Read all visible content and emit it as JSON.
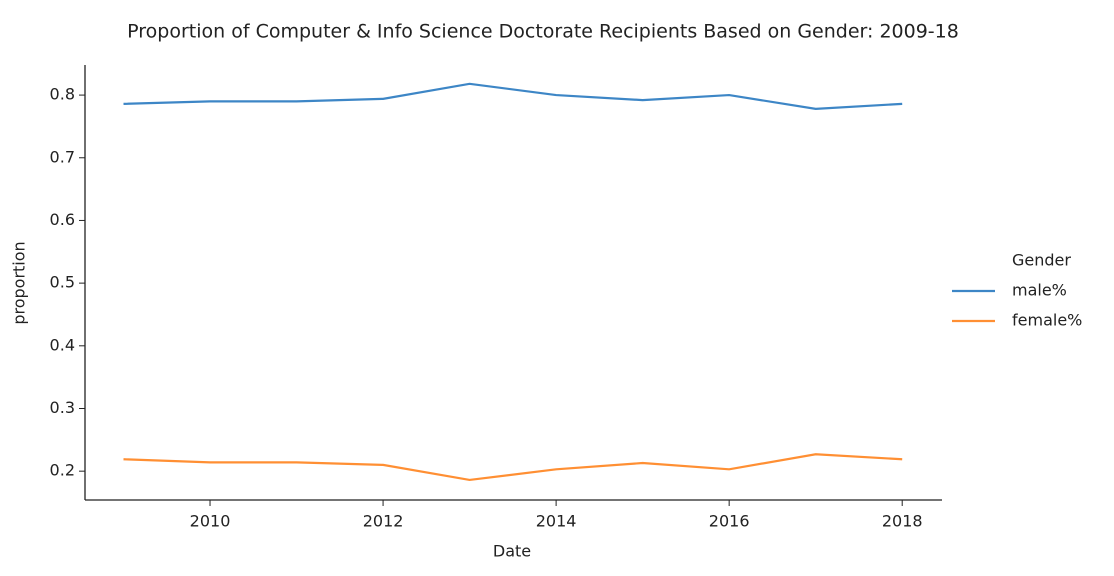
{
  "chart_data": {
    "type": "line",
    "title": "Proportion of Computer & Info Science Doctorate Recipients Based on Gender: 2009-18",
    "x_label": "Date",
    "y_label": "proportion",
    "x": [
      2009,
      2010,
      2011,
      2012,
      2013,
      2014,
      2015,
      2016,
      2017,
      2018
    ],
    "series": [
      {
        "name": "male%",
        "color": "#3d86c6",
        "values": [
          0.786,
          0.79,
          0.79,
          0.794,
          0.818,
          0.8,
          0.792,
          0.8,
          0.778,
          0.786
        ]
      },
      {
        "name": "female%",
        "color": "#ff8f33",
        "values": [
          0.219,
          0.214,
          0.214,
          0.21,
          0.186,
          0.203,
          0.213,
          0.203,
          0.227,
          0.219
        ]
      }
    ],
    "xlim": [
      2008.555,
      2018.46
    ],
    "xticks": [
      2010,
      2012,
      2014,
      2016,
      2018
    ],
    "ylim": [
      0.154,
      0.848
    ],
    "yticks": [
      0.2,
      0.3,
      0.4,
      0.5,
      0.6,
      0.7,
      0.8
    ],
    "legend_title": "Gender",
    "legend_position": "right",
    "grid": false
  }
}
